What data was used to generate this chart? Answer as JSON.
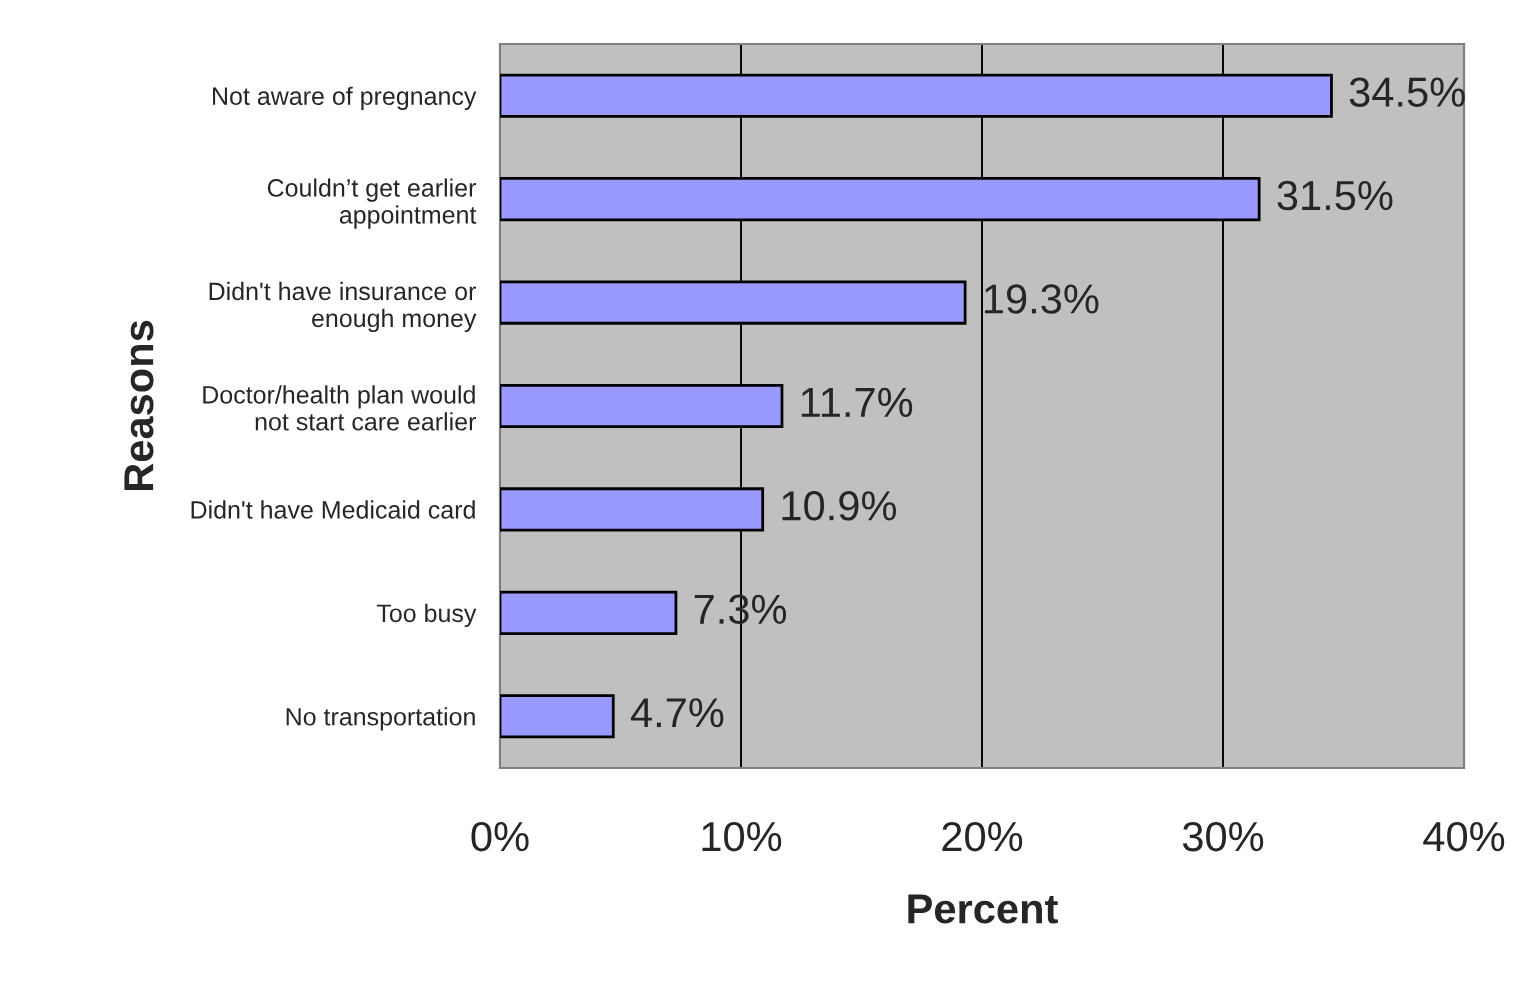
{
  "chart_data": {
    "type": "bar",
    "orientation": "horizontal",
    "xlabel": "Percent",
    "ylabel": "Reasons",
    "categories": [
      "Not aware of pregnancy",
      "Couldn’t get earlier\nappointment",
      "Didn't have insurance or\nenough money",
      "Doctor/health plan would\nnot start care earlier",
      "Didn't have Medicaid card",
      "Too busy",
      "No transportation"
    ],
    "values": [
      34.5,
      31.5,
      19.3,
      11.7,
      10.9,
      7.3,
      4.7
    ],
    "value_labels": [
      "34.5%",
      "31.5%",
      "19.3%",
      "11.7%",
      "10.9%",
      "7.3%",
      "4.7%"
    ],
    "color": "#9999ff",
    "xlim": [
      0,
      40
    ],
    "xticks": [
      {
        "value": 0,
        "label": "0%"
      },
      {
        "value": 10,
        "label": "10%"
      },
      {
        "value": 20,
        "label": "20%"
      },
      {
        "value": 30,
        "label": "30%"
      },
      {
        "value": 40,
        "label": "40%"
      }
    ],
    "grid": "x",
    "legend": false
  }
}
